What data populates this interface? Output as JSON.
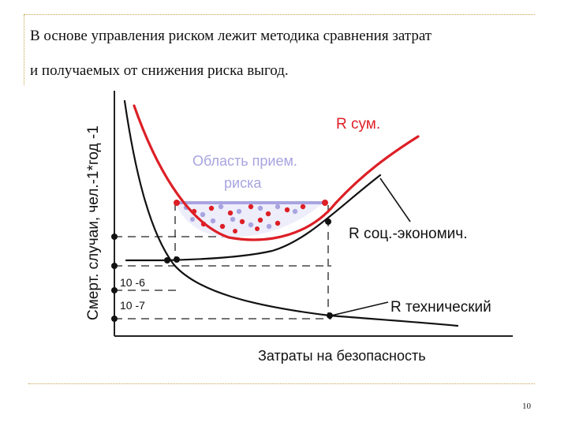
{
  "slide": {
    "intro_line1": "В основе управления риском лежит методика сравнения затрат",
    "intro_line2": "и получаемых от снижения риска выгод.",
    "page_number": "10"
  },
  "diagram": {
    "y_axis_label": "Смерт. случаи, чел.-1*год -1",
    "x_axis_label": "Затраты на безопасность",
    "tick_upper": "10 -6",
    "tick_lower": "10 -7",
    "curve_total_label": "R сум.",
    "curve_socio_label": "R соц.-экономич.",
    "curve_tech_label": "R технический",
    "region_label_line1": "Область прием.",
    "region_label_line2": "риска"
  },
  "colors": {
    "total_curve": "#dd1f26",
    "region": "#a8a4e0",
    "axis": "#222222",
    "rule": "#c8a24a"
  }
}
